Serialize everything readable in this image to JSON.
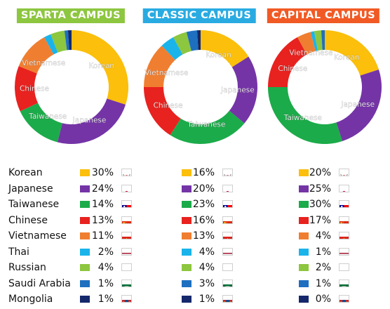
{
  "chart_data": [
    {
      "type": "pie",
      "title": "SPARTA CAMPUS",
      "title_color": "#8dc63f",
      "categories": [
        "Korean",
        "Japanese",
        "Taiwanese",
        "Chinese",
        "Vietnamese",
        "Thai",
        "Russian",
        "Saudi Arabia",
        "Mongolia"
      ],
      "values": [
        30,
        24,
        14,
        13,
        11,
        2,
        4,
        1,
        1
      ],
      "labels": [
        "30%",
        "24%",
        "14%",
        "13%",
        "11%",
        "2%",
        "4%",
        "1%",
        "1%"
      ]
    },
    {
      "type": "pie",
      "title": "CLASSIC CAMPUS",
      "title_color": "#29abe2",
      "categories": [
        "Korean",
        "Japanese",
        "Taiwanese",
        "Chinese",
        "Vietnamese",
        "Thai",
        "Russian",
        "Saudi Arabia",
        "Mongolia"
      ],
      "values": [
        16,
        20,
        23,
        16,
        13,
        4,
        4,
        3,
        1
      ],
      "labels": [
        "16%",
        "20%",
        "23%",
        "16%",
        "13%",
        "4%",
        "4%",
        "3%",
        "1%"
      ]
    },
    {
      "type": "pie",
      "title": "CAPITAL CAMPUS",
      "title_color": "#f15a24",
      "categories": [
        "Korean",
        "Japanese",
        "Taiwanese",
        "Chinese",
        "Vietnamese",
        "Thai",
        "Russian",
        "Saudi Arabia",
        "Mongolia"
      ],
      "values": [
        20,
        25,
        30,
        17,
        4,
        1,
        2,
        1,
        0
      ],
      "labels": [
        "20%",
        "25%",
        "30%",
        "17%",
        "4%",
        "1%",
        "2%",
        "1%",
        "0%"
      ]
    }
  ],
  "nationalities": [
    "Korean",
    "Japanese",
    "Taiwanese",
    "Chinese",
    "Vietnamese",
    "Thai",
    "Russian",
    "Saudi Arabia",
    "Mongolia"
  ],
  "colors": [
    "#fbbf0c",
    "#7434a6",
    "#1cab4a",
    "#e8221f",
    "#f07e30",
    "#1ab4eb",
    "#8dc63f",
    "#1e6fbf",
    "#14286b"
  ],
  "flag_icons": [
    "korea-flag-icon",
    "japan-flag-icon",
    "taiwan-flag-icon",
    "china-flag-icon",
    "vietnam-flag-icon",
    "thailand-flag-icon",
    "russia-flag-icon",
    "saudi-arabia-flag-icon",
    "mongolia-flag-icon"
  ],
  "slice_labels": [
    "Korean",
    "Japanese",
    "Taiwanese",
    "Chinese",
    "Vietnamese"
  ]
}
